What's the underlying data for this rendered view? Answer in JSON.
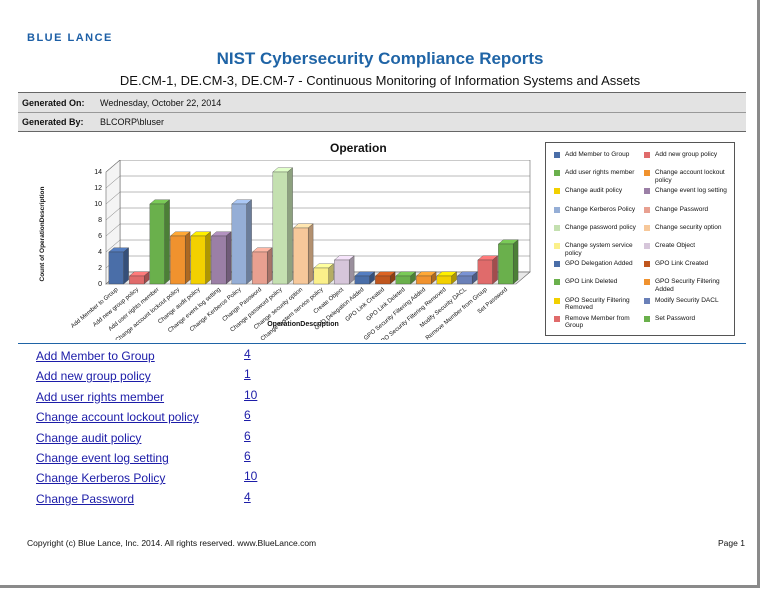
{
  "header": {
    "logo_text": "BLUE LANCE",
    "title": "NIST Cybersecurity Compliance Reports",
    "subtitle": "DE.CM-1, DE.CM-3, DE.CM-7 - Continuous Monitoring of Information Systems and Assets"
  },
  "meta": {
    "generated_on_label": "Generated On:",
    "generated_on_value": "Wednesday, October 22, 2014",
    "generated_by_label": "Generated By:",
    "generated_by_value": "BLCORP\\bluser"
  },
  "chart_data": {
    "type": "bar",
    "title": "Operation",
    "xlabel": "OperationDescription",
    "ylabel": "Count of OperationDescription",
    "ylim": [
      0,
      14
    ],
    "yticks": [
      0,
      2,
      4,
      6,
      8,
      10,
      12,
      14
    ],
    "categories": [
      "Add Member to Group",
      "Add new group policy",
      "Add user rights member",
      "Change account lockout policy",
      "Change audit policy",
      "Change event log setting",
      "Change Kerberos Policy",
      "Change Password",
      "Change password policy",
      "Change security option",
      "Change system service policy",
      "Create Object",
      "GPO Delegation Added",
      "GPO Link Created",
      "GPO Link Deleted",
      "GPO Security Filtering Added",
      "GPO Security Filtering Removed",
      "Modify Security DACL",
      "Remove Member from Group",
      "Set Password"
    ],
    "values": [
      4,
      1,
      10,
      6,
      6,
      6,
      10,
      4,
      14,
      7,
      2,
      3,
      1,
      1,
      1,
      1,
      1,
      1,
      3,
      5
    ],
    "colors": [
      "#4a6ea8",
      "#e06b6b",
      "#6ab04c",
      "#f0922e",
      "#f2d000",
      "#9b7fa6",
      "#95aed6",
      "#e8a090",
      "#c4e0b0",
      "#f7c89a",
      "#fbf08a",
      "#d6c6da",
      "#4a6ea8",
      "#c0561d",
      "#6ab04c",
      "#f0922e",
      "#f2d000",
      "#6a80b8",
      "#e06b6b",
      "#6ab04c"
    ],
    "legend": {
      "position": "right",
      "entries": [
        "Add Member to Group",
        "Add new group policy",
        "Add user rights member",
        "Change account lockout policy",
        "Change audit policy",
        "Change event log setting",
        "Change Kerberos Policy",
        "Change Password",
        "Change password policy",
        "Change security option",
        "Change system service policy",
        "Create Object",
        "GPO Delegation Added",
        "GPO Link Created",
        "GPO Link Deleted",
        "GPO Security Filtering Added",
        "GPO Security Filtering Removed",
        "Modify Security DACL",
        "Remove Member from Group",
        "Set Password"
      ]
    },
    "grid": true
  },
  "links": [
    {
      "label": "Add Member to Group",
      "count": "4"
    },
    {
      "label": "Add new group policy",
      "count": "1"
    },
    {
      "label": "Add user rights member",
      "count": "10"
    },
    {
      "label": "Change account lockout policy",
      "count": "6"
    },
    {
      "label": "Change audit policy",
      "count": "6"
    },
    {
      "label": "Change event log setting",
      "count": "6"
    },
    {
      "label": "Change Kerberos Policy",
      "count": "10"
    },
    {
      "label": "Change Password",
      "count": "4"
    }
  ],
  "footer": {
    "copyright": "Copyright (c) Blue Lance, Inc. 2014. All rights reserved. www.BlueLance.com",
    "page": "Page 1"
  }
}
